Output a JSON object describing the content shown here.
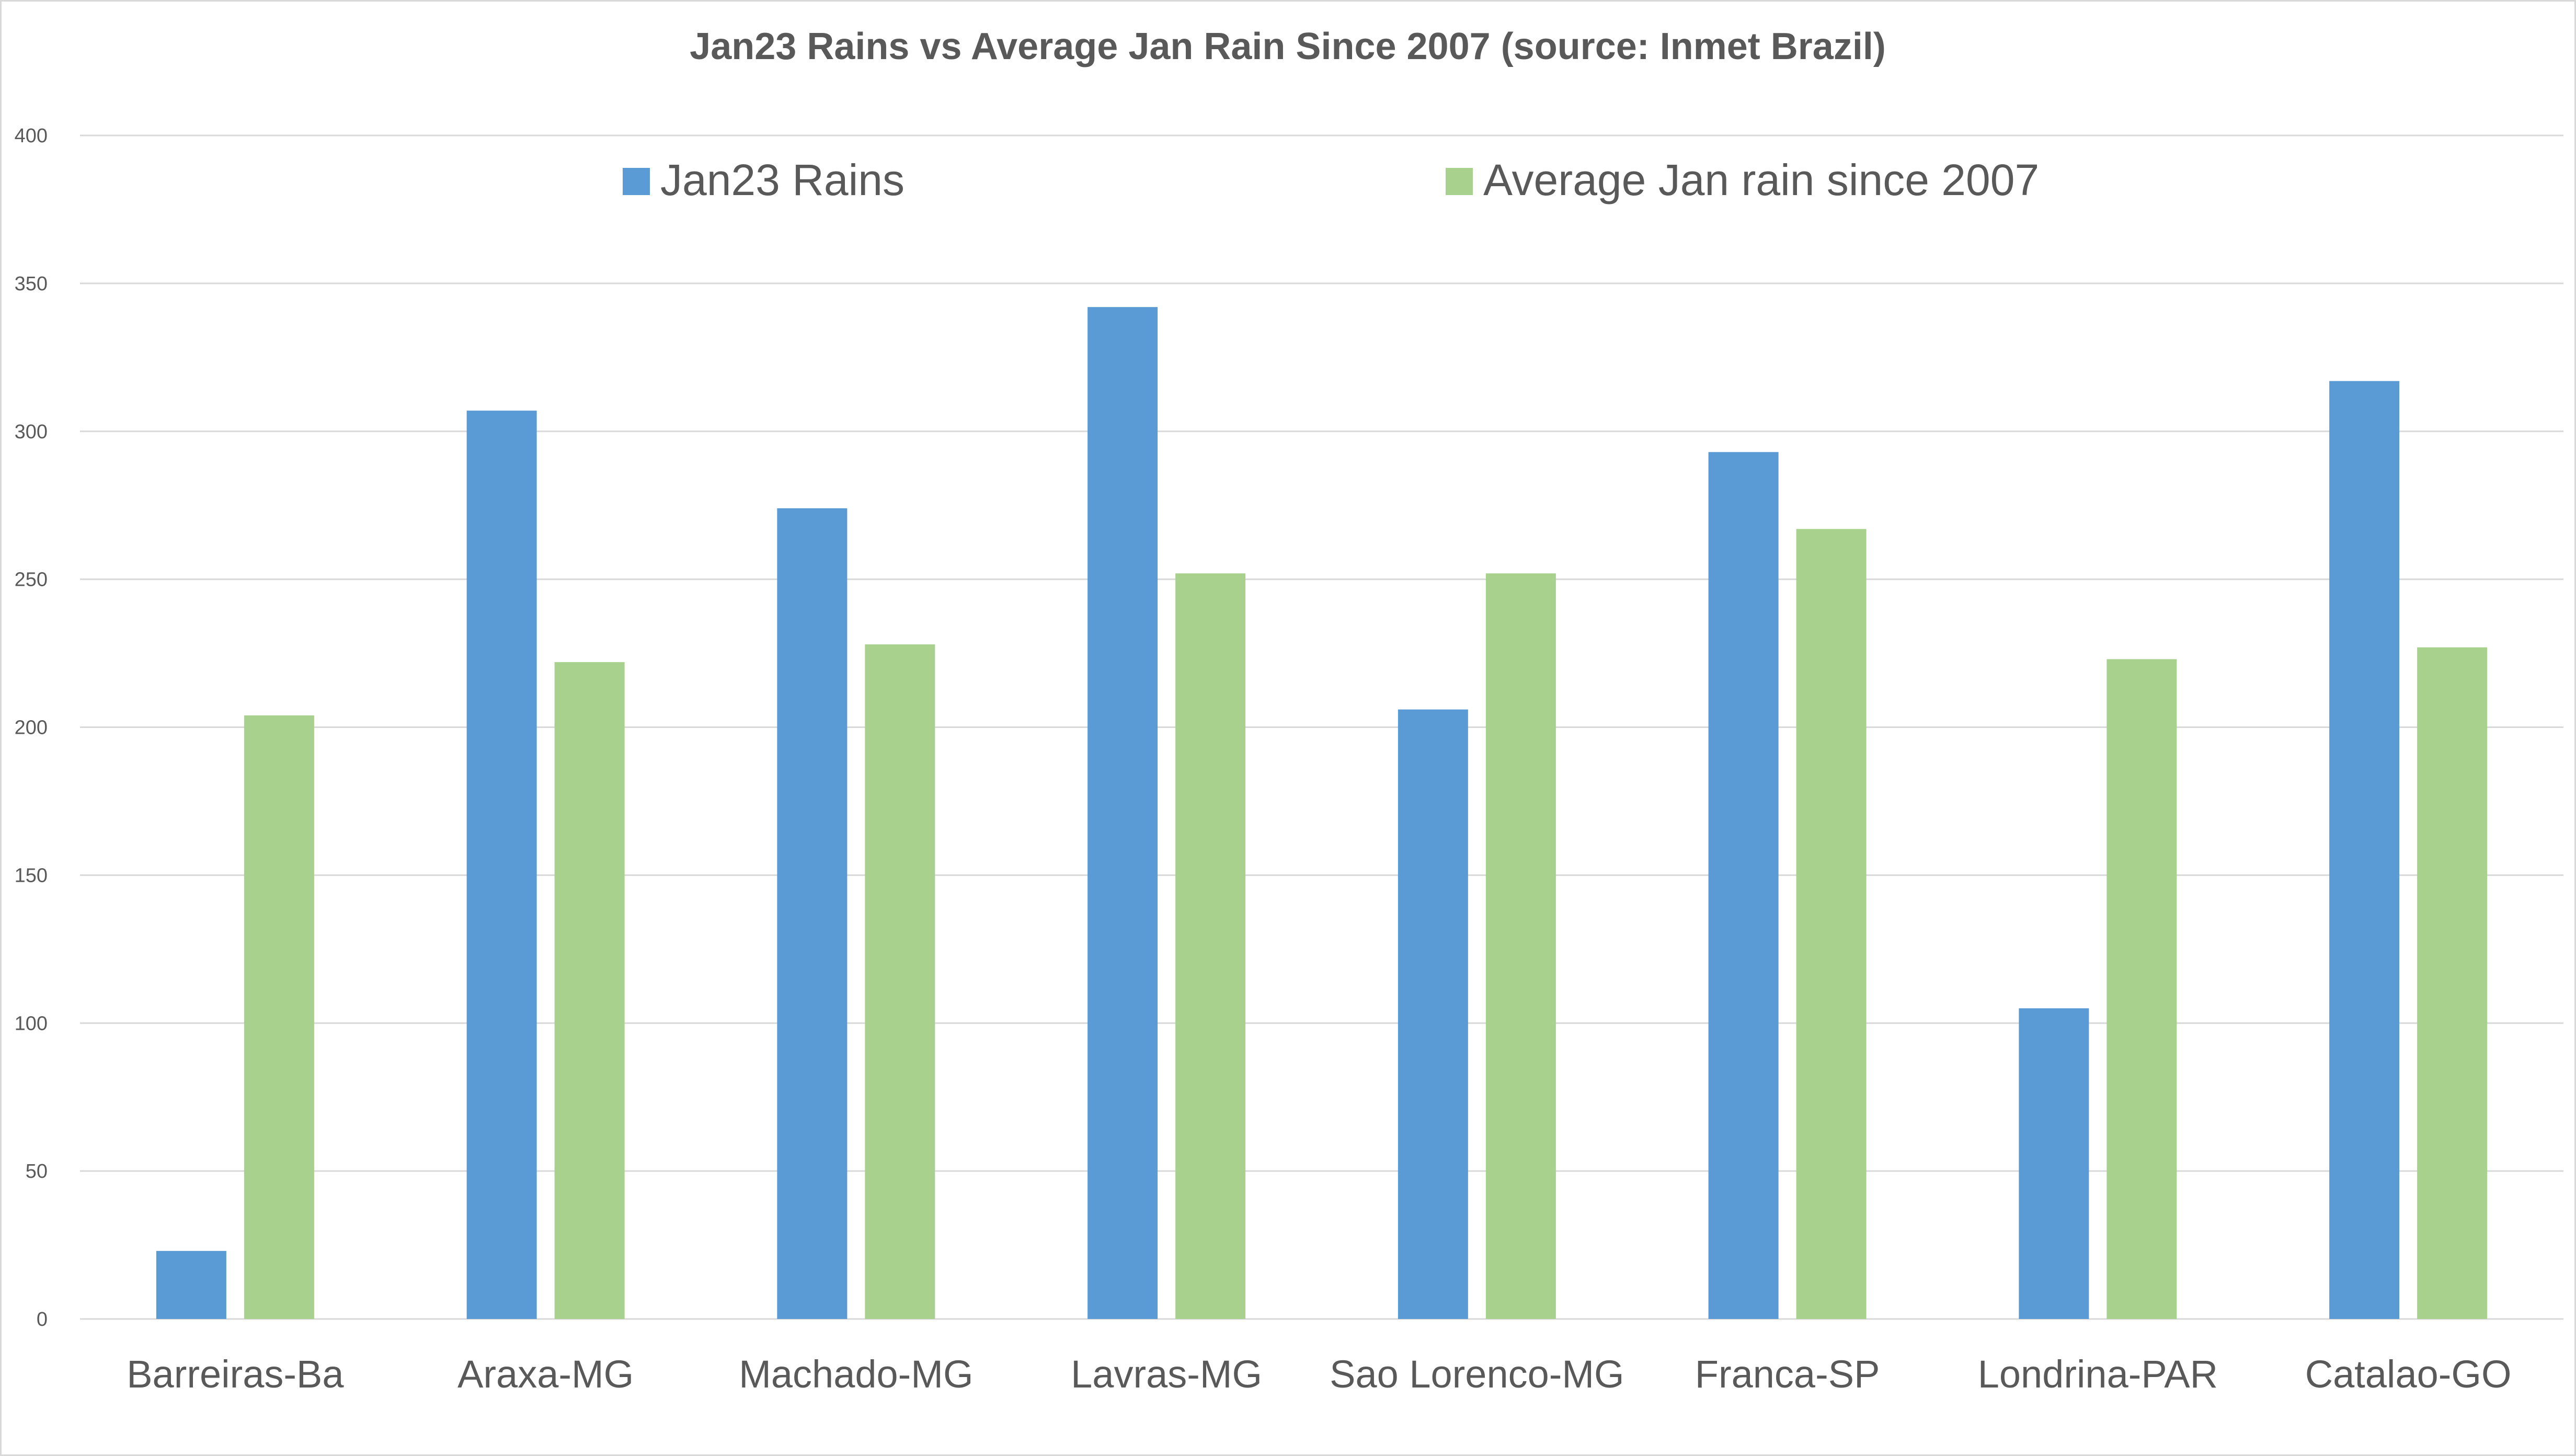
{
  "chart_data": {
    "type": "bar",
    "title": "Jan23 Rains vs Average Jan Rain Since 2007 (source: Inmet Brazil)",
    "xlabel": "",
    "ylabel": "",
    "ylim": [
      0,
      400
    ],
    "yticks": [
      0,
      50,
      100,
      150,
      200,
      250,
      300,
      350,
      400
    ],
    "grid": true,
    "legend_position": "top",
    "categories": [
      "Barreiras-Ba",
      "Araxa-MG",
      "Machado-MG",
      "Lavras-MG",
      "Sao Lorenco-MG",
      "Franca-SP",
      "Londrina-PAR",
      "Catalao-GO"
    ],
    "series": [
      {
        "name": "Jan23 Rains",
        "color": "#5b9bd5",
        "values": [
          23,
          307,
          274,
          342,
          206,
          293,
          105,
          317
        ]
      },
      {
        "name": "Average Jan  rain since 2007",
        "color": "#a9d18e",
        "values": [
          204,
          222,
          228,
          252,
          252,
          267,
          223,
          227
        ]
      }
    ]
  }
}
